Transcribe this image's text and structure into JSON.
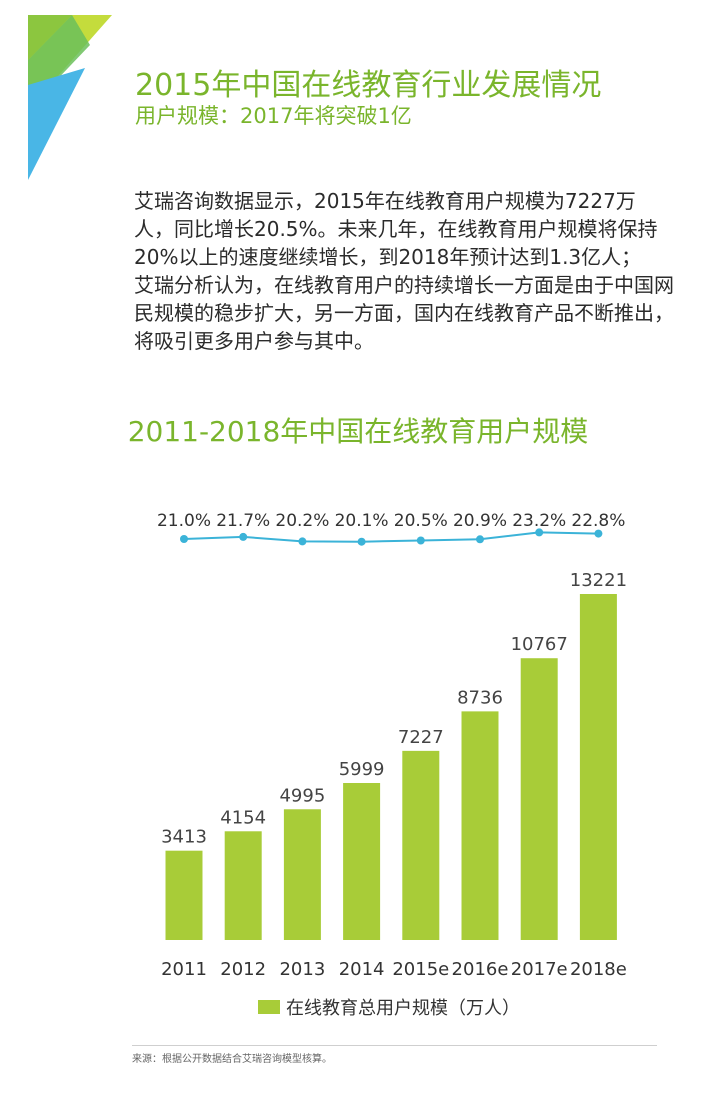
{
  "header": {
    "title": "2015年中国在线教育行业发展情况",
    "subtitle": "用户规模：2017年将突破1亿"
  },
  "body": {
    "paragraph1": "艾瑞咨询数据显示，2015年在线教育用户规模为7227万人，同比增长20.5%。未来几年，在线教育用户规模将保持20%以上的速度继续增长，到2018年预计达到1.3亿人；",
    "paragraph2": "艾瑞分析认为，在线教育用户的持续增长一方面是由于中国网民规模的稳步扩大，另一方面，国内在线教育产品不断推出，将吸引更多用户参与其中。"
  },
  "chart_data": {
    "type": "bar",
    "title": "2011-2018年中国在线教育用户规模",
    "categories": [
      "2011",
      "2012",
      "2013",
      "2014",
      "2015e",
      "2016e",
      "2017e",
      "2018e"
    ],
    "series": [
      {
        "name": "在线教育总用户规模（万人）",
        "type": "bar",
        "values": [
          3413,
          4154,
          4995,
          5999,
          7227,
          8736,
          10767,
          13221
        ],
        "color": "#a8cc38"
      },
      {
        "type": "line",
        "values": [
          21.0,
          21.7,
          20.2,
          20.1,
          20.5,
          20.9,
          23.2,
          22.8
        ],
        "labels": [
          "21.0%",
          "21.7%",
          "20.2%",
          "20.1%",
          "20.5%",
          "20.9%",
          "23.2%",
          "22.8%"
        ],
        "color": "#3bb3d8"
      }
    ],
    "legend": "bottom",
    "grid": false
  },
  "footer": {
    "source": "来源：根据公开数据结合艾瑞咨询模型核算。"
  },
  "colors": {
    "accent_green": "#7ab52c",
    "bar_green": "#a8cc38",
    "line_blue": "#3bb3d8"
  }
}
